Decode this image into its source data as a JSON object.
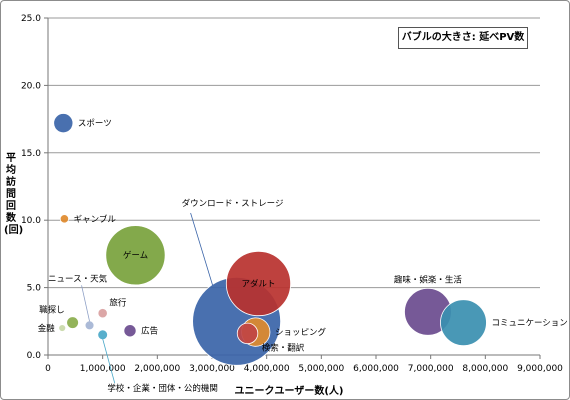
{
  "chart_data": {
    "type": "bubble",
    "annotation": "バブルの大きさ: 延べPV数",
    "xlabel": "ユニークユーザー数(人)",
    "ylabel": "平均訪問回数(回)",
    "xlim": [
      0,
      9000000
    ],
    "ylim": [
      0,
      25
    ],
    "x_ticks": [
      "0",
      "1,000,000",
      "2,000,000",
      "3,000,000",
      "4,000,000",
      "5,000,000",
      "6,000,000",
      "7,000,000",
      "8,000,000",
      "9,000,000"
    ],
    "y_ticks": [
      "0.0",
      "5.0",
      "10.0",
      "15.0",
      "20.0",
      "25.0"
    ],
    "grid": "horizontal",
    "points": [
      {
        "name": "ダウンロード・ストレージ",
        "x": 3450000,
        "y": 2.5,
        "size": 88000000,
        "color": "#3a64a8",
        "label_pos": "callout"
      },
      {
        "name": "ゲーム",
        "x": 1600000,
        "y": 7.4,
        "size": 40000000,
        "color": "#78a23c",
        "label_pos": "inside"
      },
      {
        "name": "アダルト",
        "x": 3850000,
        "y": 5.3,
        "size": 47000000,
        "color": "#b8312e",
        "label_pos": "inside"
      },
      {
        "name": "趣味・娯楽・生活",
        "x": 6950000,
        "y": 3.2,
        "size": 25000000,
        "color": "#6a4b8e",
        "label_pos": "above"
      },
      {
        "name": "コミュニケーション",
        "x": 7600000,
        "y": 2.4,
        "size": 24000000,
        "color": "#3a8fb0",
        "label_pos": "right"
      },
      {
        "name": "スポーツ",
        "x": 280000,
        "y": 17.2,
        "size": 4200000,
        "color": "#3a64a8",
        "label_pos": "right"
      },
      {
        "name": "ショッピング",
        "x": 3800000,
        "y": 1.7,
        "size": 9200000,
        "color": "#e08a2c",
        "label_pos": "right"
      },
      {
        "name": "検索・翻訳",
        "x": 3650000,
        "y": 1.6,
        "size": 4800000,
        "color": "#c04444",
        "label_pos": "below-right"
      },
      {
        "name": "ギャンブル",
        "x": 300000,
        "y": 10.1,
        "size": 800000,
        "color": "#e08a2c",
        "label_pos": "right"
      },
      {
        "name": "広告",
        "x": 1500000,
        "y": 1.8,
        "size": 1700000,
        "color": "#6a4b8e",
        "label_pos": "right"
      },
      {
        "name": "旅行",
        "x": 1000000,
        "y": 3.1,
        "size": 1000000,
        "color": "#d9a0a0",
        "label_pos": "above-right"
      },
      {
        "name": "職探し",
        "x": 450000,
        "y": 2.4,
        "size": 1600000,
        "color": "#8aad4c",
        "label_pos": "above-left"
      },
      {
        "name": "ニュース・天気",
        "x": 760000,
        "y": 2.2,
        "size": 900000,
        "color": "#a4b4d4",
        "label_pos": "callout"
      },
      {
        "name": "学校・企業・団体・公的機関",
        "x": 1000000,
        "y": 1.5,
        "size": 1100000,
        "color": "#4aa8c8",
        "label_pos": "callout"
      },
      {
        "name": "金融",
        "x": 260000,
        "y": 2.0,
        "size": 200000,
        "color": "#c8d8a8",
        "label_pos": "left"
      }
    ]
  }
}
